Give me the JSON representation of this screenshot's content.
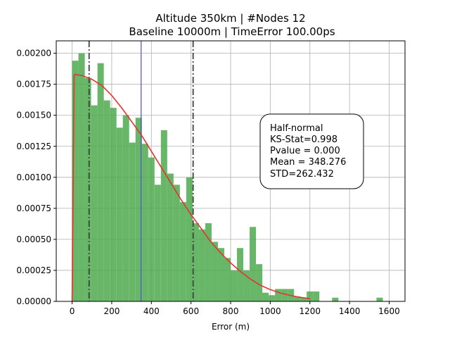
{
  "chart_data": {
    "type": "histogram",
    "title_line1": "Altitude 350km | #Nodes 12",
    "title_line2": "Baseline 10000m | TimeError 100.00ps",
    "xlabel": "Error (m)",
    "ylabel": "",
    "xlim": [
      -80,
      1680
    ],
    "ylim": [
      0,
      0.0021
    ],
    "grid": true,
    "xticks": [
      0,
      200,
      400,
      600,
      800,
      1000,
      1200,
      1400,
      1600
    ],
    "yticks": [
      0.0,
      0.00025,
      0.0005,
      0.00075,
      0.001,
      0.00125,
      0.0015,
      0.00175,
      0.002
    ],
    "xtick_labels": [
      "0",
      "200",
      "400",
      "600",
      "800",
      "1000",
      "1200",
      "1400",
      "1600"
    ],
    "ytick_labels": [
      "0.00000",
      "0.00025",
      "0.00050",
      "0.00075",
      "0.00100",
      "0.00125",
      "0.00150",
      "0.00175",
      "0.00200"
    ],
    "histogram": {
      "color": "#4daa4d",
      "bin_start": 0,
      "bin_width": 32,
      "densities": [
        0.00194,
        0.002,
        0.0018,
        0.00158,
        0.00192,
        0.00162,
        0.00156,
        0.0014,
        0.0015,
        0.00128,
        0.00148,
        0.00127,
        0.00116,
        0.00094,
        0.00138,
        0.00103,
        0.00094,
        0.0008,
        0.001,
        0.00063,
        0.00058,
        0.00063,
        0.00048,
        0.00043,
        0.00035,
        0.00025,
        0.00043,
        0.00025,
        0.0006,
        0.0003,
        7e-05,
        5e-05,
        0.0001,
        0.0001,
        0.0001,
        4e-05,
        3e-05,
        8e-05,
        8e-05,
        0.0,
        0.0,
        3e-05,
        0.0,
        0.0,
        0.0,
        0.0,
        0.0,
        0.0,
        3e-05,
        0.0
      ]
    },
    "series": [
      {
        "name": "Half-normal fit",
        "color": "#e8322e",
        "x": [
          0,
          10,
          14,
          50,
          100,
          150,
          200,
          250,
          300,
          350,
          400,
          450,
          500,
          550,
          600,
          650,
          700,
          750,
          800,
          850,
          900,
          950,
          1000,
          1050,
          1100,
          1150,
          1200
        ],
        "y": [
          0.0,
          0.00182,
          0.00183,
          0.00182,
          0.00179,
          0.00174,
          0.00166,
          0.00156,
          0.00145,
          0.00134,
          0.00121,
          0.00108,
          0.00095,
          0.00082,
          0.0007,
          0.00059,
          0.00048,
          0.00039,
          0.00031,
          0.00024,
          0.00018,
          0.00013,
          9.5e-05,
          6.8e-05,
          4.8e-05,
          3.3e-05,
          2.2e-05
        ]
      }
    ],
    "vlines": [
      {
        "name": "mean-line",
        "x": 348.276,
        "color": "#4a4adc",
        "style": "solid"
      },
      {
        "name": "lower-std-line",
        "x": 85.8,
        "color": "#404040",
        "style": "dashdot"
      },
      {
        "name": "upper-std-line",
        "x": 610.7,
        "color": "#404040",
        "style": "dashdot"
      }
    ],
    "annotation": {
      "lines": [
        "Half-normal",
        "KS-Stat=0.998",
        "Pvalue = 0.000",
        "Mean = 348.276",
        "STD=262.432"
      ],
      "placement": "center-right"
    }
  }
}
